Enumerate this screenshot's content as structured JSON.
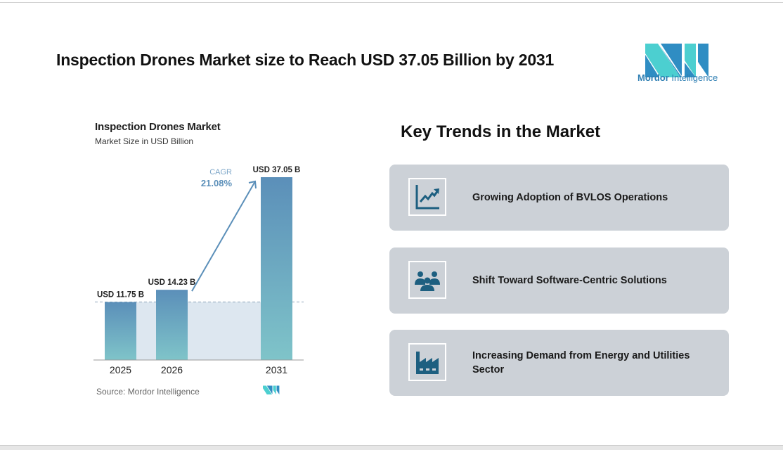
{
  "header": {
    "title": "Inspection Drones Market size to Reach USD 37.05 Billion by 2031"
  },
  "logo": {
    "brand_bold": "Mordor",
    "brand_rest": "Intelligence"
  },
  "chart_data": {
    "type": "bar",
    "title": "Inspection Drones Market",
    "subtitle": "Market Size in USD Billion",
    "categories": [
      "2025",
      "2026",
      "2031"
    ],
    "values": [
      11.75,
      14.23,
      37.05
    ],
    "data_labels": [
      "USD 11.75 B",
      "USD 14.23 B",
      "USD 37.05 B"
    ],
    "annotation": {
      "label": "CAGR",
      "value": "21.08%"
    },
    "source": "Source: Mordor Intelligence",
    "grid": false,
    "colors": {
      "bar_top": "#5b8fb9",
      "bar_bottom": "#7fc4c9",
      "shade": "#dde7f0",
      "arrow": "#5b8fb9"
    }
  },
  "trends": {
    "title": "Key Trends in the Market",
    "items": [
      {
        "icon": "line-chart-up-icon",
        "label": "Growing Adoption of BVLOS Operations"
      },
      {
        "icon": "people-group-icon",
        "label": "Shift Toward Software-Centric Solutions"
      },
      {
        "icon": "factory-icon",
        "label": "Increasing Demand from Energy and Utilities Sector"
      }
    ]
  },
  "colors": {
    "card_bg": "#ccd1d7",
    "icon": "#1d5f80",
    "logo_dark": "#2f8dc3",
    "logo_light": "#4ccfd0"
  }
}
